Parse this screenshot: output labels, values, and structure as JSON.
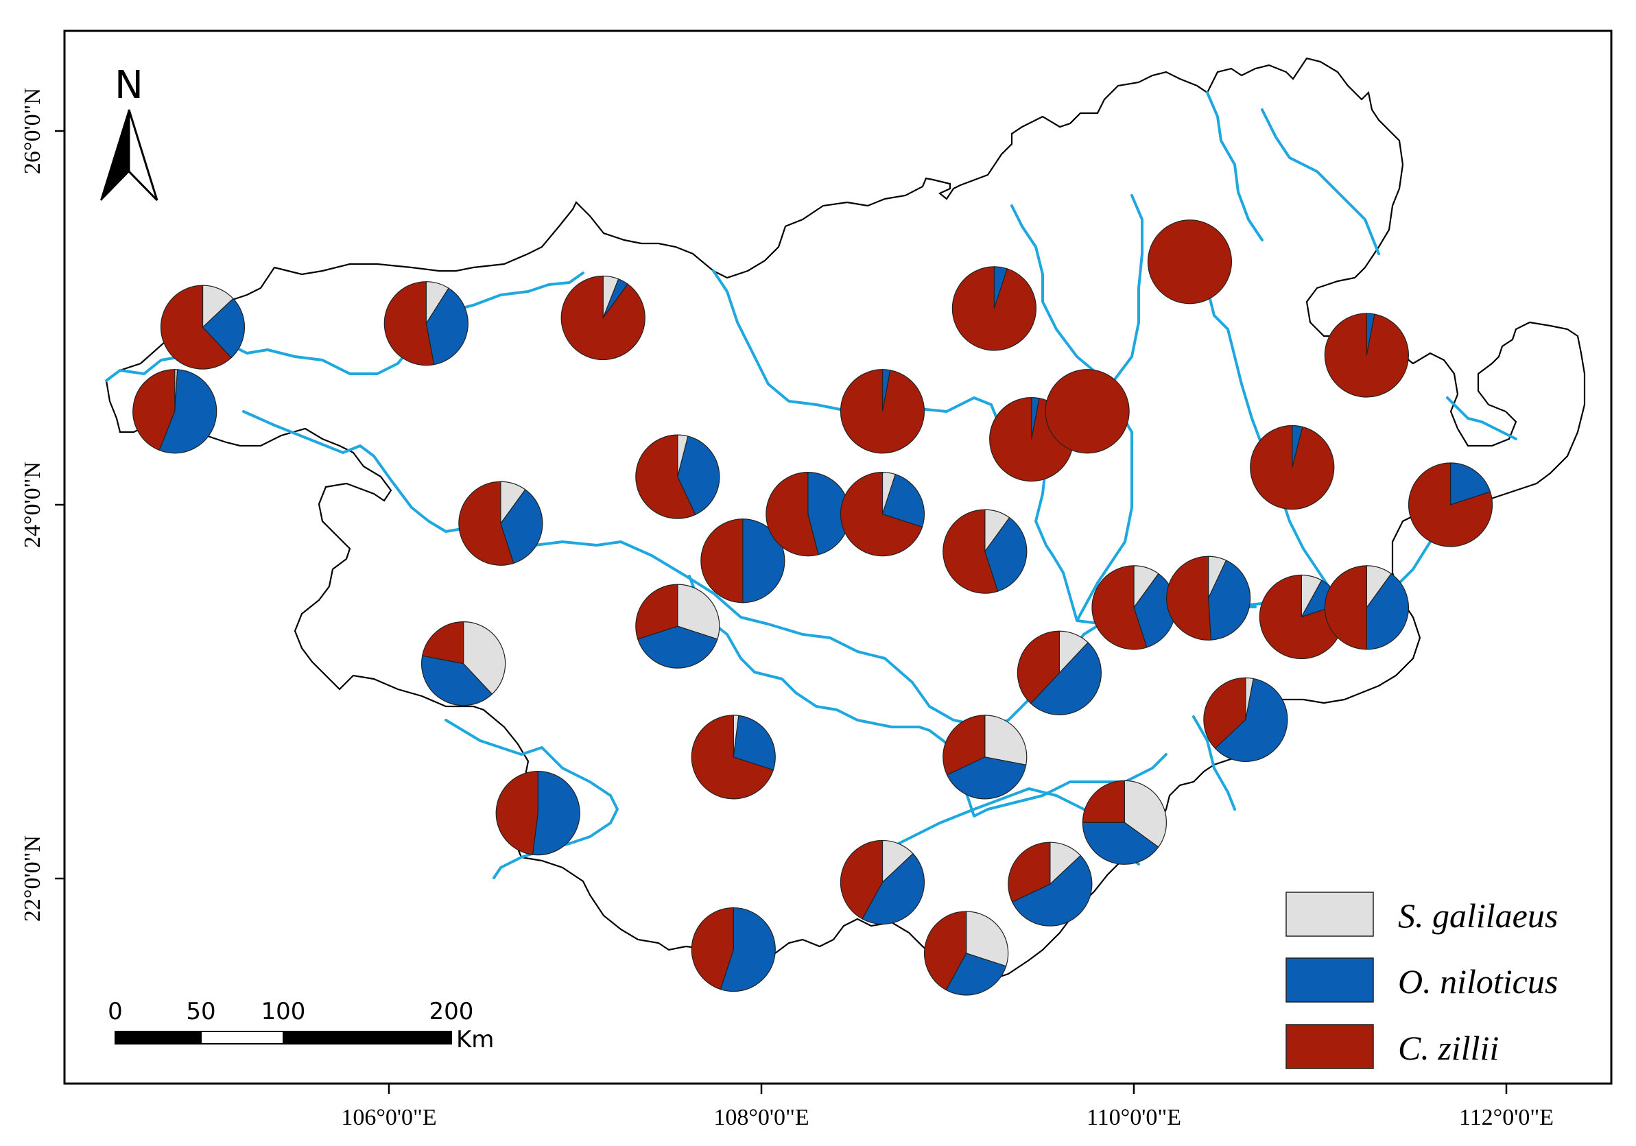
{
  "map": {
    "x_ticks": [
      "106°0'0\"E",
      "108°0'0\"E",
      "110°0'0\"E",
      "112°0'0\"E"
    ],
    "y_ticks": [
      "26°0'0\"N",
      "24°0'0\"N",
      "22°0'0\"N"
    ],
    "north_arrow": {
      "label": "N",
      "icon": "north-arrow-icon"
    },
    "scale_bar": {
      "labels": [
        "0",
        "50",
        "100",
        "200"
      ],
      "unit": "Km"
    },
    "legend": [
      {
        "label": "S. galilaeus",
        "color": "#e0e0e0"
      },
      {
        "label": "O. niloticus",
        "color": "#0a5fb4"
      },
      {
        "label": "C. zillii",
        "color": "#a61e0a"
      }
    ],
    "colors": {
      "boundary": "#000000",
      "river": "#1fa8e0"
    }
  },
  "chart_data": {
    "type": "pie-map",
    "categories": [
      "S. galilaeus",
      "O. niloticus",
      "C. zillii"
    ],
    "sites": [
      {
        "lon": 105.0,
        "lat": 24.95,
        "values": [
          0.13,
          0.25,
          0.62
        ]
      },
      {
        "lon": 106.2,
        "lat": 24.97,
        "values": [
          0.09,
          0.38,
          0.53
        ]
      },
      {
        "lon": 107.15,
        "lat": 25.0,
        "values": [
          0.06,
          0.04,
          0.9
        ]
      },
      {
        "lon": 104.85,
        "lat": 24.5,
        "values": [
          0.01,
          0.55,
          0.44
        ]
      },
      {
        "lon": 109.25,
        "lat": 25.05,
        "values": [
          0.0,
          0.05,
          0.95
        ]
      },
      {
        "lon": 110.3,
        "lat": 25.3,
        "values": [
          0.0,
          0.0,
          1.0
        ]
      },
      {
        "lon": 111.25,
        "lat": 24.8,
        "values": [
          0.0,
          0.03,
          0.97
        ]
      },
      {
        "lon": 108.65,
        "lat": 24.5,
        "values": [
          0.0,
          0.03,
          0.97
        ]
      },
      {
        "lon": 109.45,
        "lat": 24.35,
        "values": [
          0.0,
          0.03,
          0.97
        ]
      },
      {
        "lon": 109.75,
        "lat": 24.5,
        "values": [
          0.0,
          0.0,
          1.0
        ]
      },
      {
        "lon": 110.85,
        "lat": 24.2,
        "values": [
          0.0,
          0.04,
          0.96
        ]
      },
      {
        "lon": 111.7,
        "lat": 24.0,
        "values": [
          0.0,
          0.2,
          0.8
        ]
      },
      {
        "lon": 107.55,
        "lat": 24.15,
        "values": [
          0.04,
          0.39,
          0.57
        ]
      },
      {
        "lon": 106.6,
        "lat": 23.9,
        "values": [
          0.1,
          0.35,
          0.55
        ]
      },
      {
        "lon": 107.9,
        "lat": 23.7,
        "values": [
          0.0,
          0.5,
          0.5
        ]
      },
      {
        "lon": 108.25,
        "lat": 23.95,
        "values": [
          0.0,
          0.46,
          0.54
        ]
      },
      {
        "lon": 108.65,
        "lat": 23.95,
        "values": [
          0.05,
          0.25,
          0.7
        ]
      },
      {
        "lon": 109.2,
        "lat": 23.75,
        "values": [
          0.1,
          0.35,
          0.55
        ]
      },
      {
        "lon": 110.0,
        "lat": 23.45,
        "values": [
          0.1,
          0.35,
          0.55
        ]
      },
      {
        "lon": 110.4,
        "lat": 23.5,
        "values": [
          0.07,
          0.42,
          0.51
        ]
      },
      {
        "lon": 110.9,
        "lat": 23.4,
        "values": [
          0.08,
          0.12,
          0.8
        ]
      },
      {
        "lon": 111.25,
        "lat": 23.45,
        "values": [
          0.1,
          0.4,
          0.5
        ]
      },
      {
        "lon": 107.55,
        "lat": 23.35,
        "values": [
          0.3,
          0.4,
          0.3
        ]
      },
      {
        "lon": 106.4,
        "lat": 23.15,
        "values": [
          0.38,
          0.4,
          0.22
        ]
      },
      {
        "lon": 109.6,
        "lat": 23.1,
        "values": [
          0.12,
          0.5,
          0.38
        ]
      },
      {
        "lon": 110.6,
        "lat": 22.85,
        "values": [
          0.03,
          0.6,
          0.37
        ]
      },
      {
        "lon": 107.85,
        "lat": 22.65,
        "values": [
          0.02,
          0.28,
          0.7
        ]
      },
      {
        "lon": 109.2,
        "lat": 22.65,
        "values": [
          0.28,
          0.4,
          0.32
        ]
      },
      {
        "lon": 106.8,
        "lat": 22.35,
        "values": [
          0.0,
          0.52,
          0.48
        ]
      },
      {
        "lon": 109.95,
        "lat": 22.3,
        "values": [
          0.35,
          0.4,
          0.25
        ]
      },
      {
        "lon": 108.65,
        "lat": 21.98,
        "values": [
          0.13,
          0.45,
          0.42
        ]
      },
      {
        "lon": 109.55,
        "lat": 21.97,
        "values": [
          0.13,
          0.55,
          0.32
        ]
      },
      {
        "lon": 107.85,
        "lat": 21.62,
        "values": [
          0.0,
          0.55,
          0.45
        ]
      },
      {
        "lon": 109.1,
        "lat": 21.6,
        "values": [
          0.3,
          0.28,
          0.42
        ]
      }
    ]
  }
}
